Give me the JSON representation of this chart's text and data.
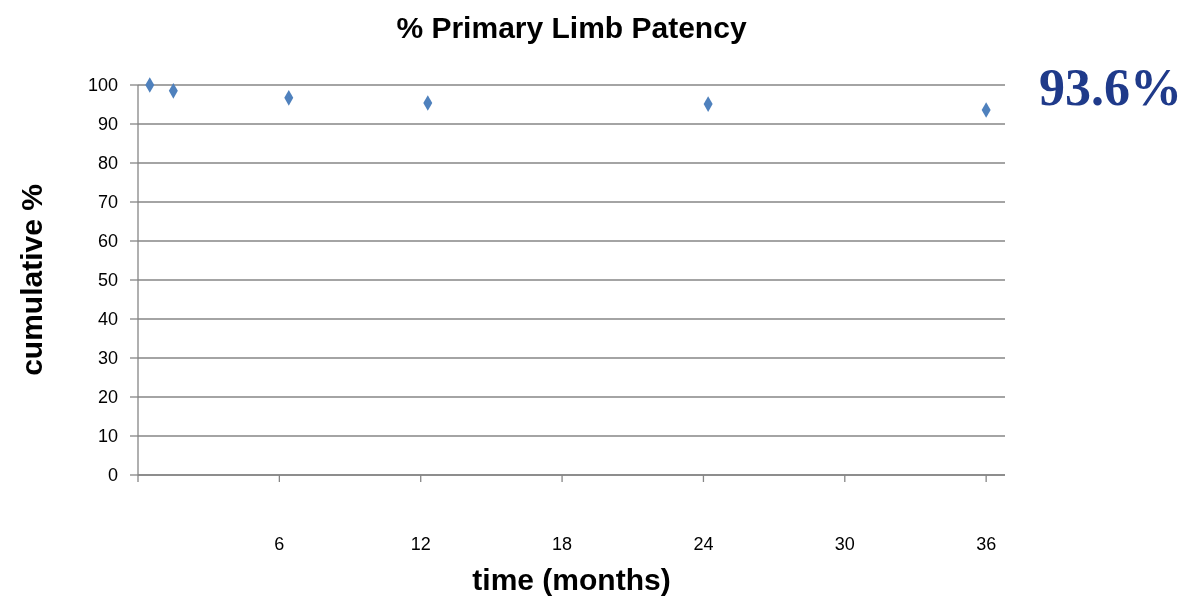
{
  "chart_data": {
    "type": "scatter",
    "title": "% Primary Limb Patency",
    "xlabel": "time (months)",
    "ylabel": "cumulative %",
    "x": [
      0.5,
      1.5,
      6.4,
      12.3,
      24.2,
      36
    ],
    "series": [
      {
        "color": "#4f81bd",
        "values": [
          100,
          98.5,
          96.7,
          95.4,
          95.1,
          93.6
        ]
      }
    ],
    "xlim": [
      0,
      36.8
    ],
    "xticks": [
      {
        "value": 0,
        "label": null
      },
      6,
      12,
      18,
      24,
      30,
      36
    ],
    "ylim": [
      0,
      100
    ],
    "yticks": [
      0,
      10,
      20,
      30,
      40,
      50,
      60,
      70,
      80,
      90,
      100
    ],
    "grid": "y",
    "marker": "diamond",
    "annotations": [
      "93.6%"
    ]
  }
}
